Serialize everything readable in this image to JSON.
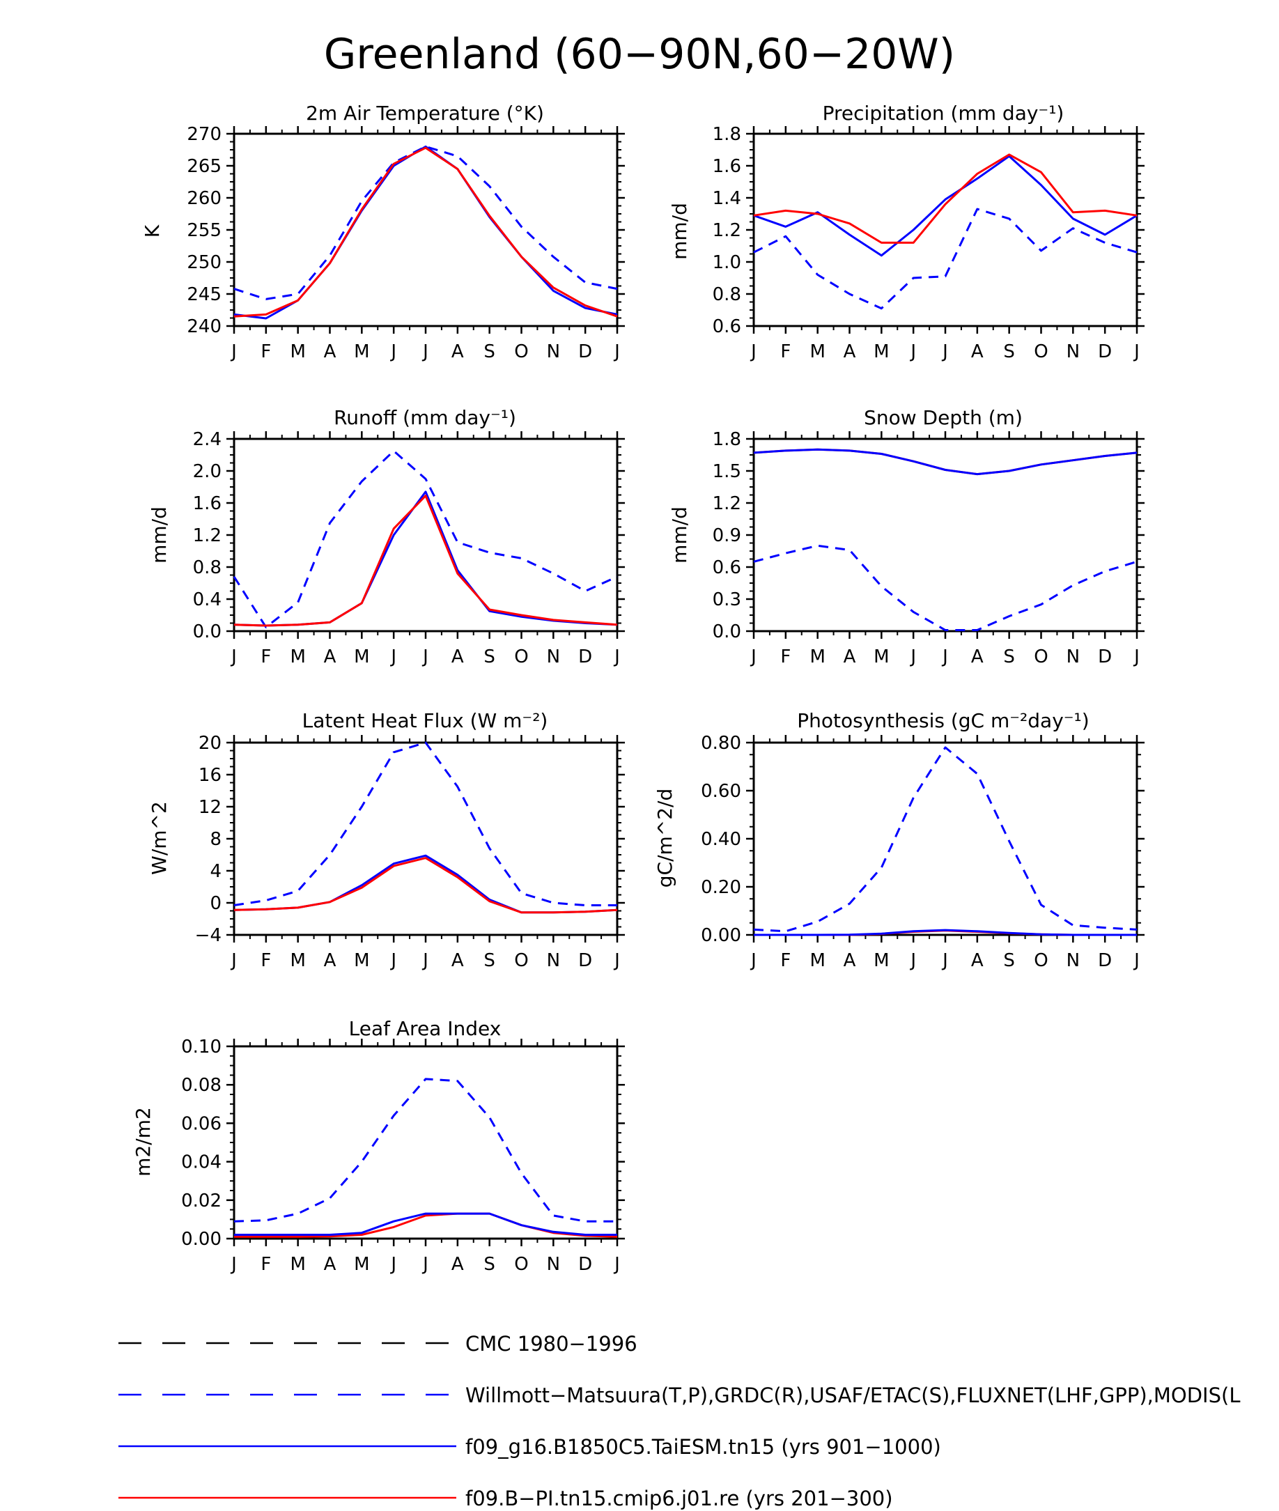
{
  "figure": {
    "title": "Greenland (60−90N,60−20W)"
  },
  "colors": {
    "obs_cmc": "#000000",
    "obs": "#0000ff",
    "taiesm": "#0000ff",
    "cmip6": "#ff0000"
  },
  "legend": [
    {
      "label": "CMC 1980−1996",
      "color": "#000000",
      "dash": true
    },
    {
      "label": "Willmott−Matsuura(T,P),GRDC(R),USAF/ETAC(S),FLUXNET(LHF,GPP),MODIS(L",
      "color": "#0000ff",
      "dash": true
    },
    {
      "label": "f09_g16.B1850C5.TaiESM.tn15 (yrs 901−1000)",
      "color": "#0000ff",
      "dash": false
    },
    {
      "label": "f09.B−PI.tn15.cmip6.j01.re (yrs 201−300)",
      "color": "#ff0000",
      "dash": false
    }
  ],
  "chart_data": [
    {
      "type": "line",
      "title": "2m Air Temperature (°K)",
      "ylabel": "K",
      "ylim": [
        240,
        270
      ],
      "yticks": [
        "270",
        "265",
        "260",
        "255",
        "250",
        "245",
        "240"
      ],
      "x": [
        "J",
        "F",
        "M",
        "A",
        "M",
        "J",
        "J",
        "A",
        "S",
        "O",
        "N",
        "D",
        "J"
      ],
      "series": [
        {
          "style": "obs",
          "values": [
            245.8,
            244.2,
            245.0,
            251.0,
            259.5,
            265.5,
            268.0,
            266.5,
            261.8,
            255.5,
            250.8,
            246.8,
            245.8
          ]
        },
        {
          "style": "taiesm",
          "values": [
            241.8,
            241.2,
            244.0,
            249.8,
            258.0,
            265.0,
            268.0,
            264.5,
            257.0,
            250.8,
            245.5,
            242.8,
            241.8
          ]
        },
        {
          "style": "cmip6",
          "values": [
            241.5,
            241.8,
            244.0,
            249.8,
            258.2,
            265.3,
            267.8,
            264.5,
            257.2,
            250.8,
            246.0,
            243.2,
            241.5
          ]
        }
      ]
    },
    {
      "type": "line",
      "title": "Precipitation (mm day⁻¹)",
      "ylabel": "mm/d",
      "ylim": [
        0.6,
        1.8
      ],
      "yticks": [
        "1.8",
        "1.6",
        "1.4",
        "1.2",
        "1.0",
        "0.8",
        "0.6"
      ],
      "x": [
        "J",
        "F",
        "M",
        "A",
        "M",
        "J",
        "J",
        "A",
        "S",
        "O",
        "N",
        "D",
        "J"
      ],
      "series": [
        {
          "style": "obs",
          "values": [
            1.06,
            1.16,
            0.92,
            0.8,
            0.71,
            0.9,
            0.91,
            1.33,
            1.27,
            1.07,
            1.21,
            1.12,
            1.06
          ]
        },
        {
          "style": "taiesm",
          "values": [
            1.29,
            1.22,
            1.31,
            1.17,
            1.04,
            1.2,
            1.39,
            1.52,
            1.66,
            1.48,
            1.27,
            1.17,
            1.29
          ]
        },
        {
          "style": "cmip6",
          "values": [
            1.29,
            1.32,
            1.3,
            1.24,
            1.12,
            1.12,
            1.36,
            1.55,
            1.67,
            1.56,
            1.31,
            1.32,
            1.29
          ]
        }
      ]
    },
    {
      "type": "line",
      "title": "Runoff (mm day⁻¹)",
      "ylabel": "mm/d",
      "ylim": [
        0.0,
        2.4
      ],
      "yticks": [
        "2.4",
        "2.0",
        "1.6",
        "1.2",
        "0.8",
        "0.4",
        "0.0"
      ],
      "x": [
        "J",
        "F",
        "M",
        "A",
        "M",
        "J",
        "J",
        "A",
        "S",
        "O",
        "N",
        "D",
        "J"
      ],
      "series": [
        {
          "style": "obs",
          "values": [
            0.68,
            0.05,
            0.36,
            1.35,
            1.87,
            2.25,
            1.9,
            1.11,
            0.98,
            0.91,
            0.72,
            0.5,
            0.68
          ]
        },
        {
          "style": "taiesm",
          "values": [
            0.08,
            0.07,
            0.08,
            0.11,
            0.35,
            1.2,
            1.74,
            0.76,
            0.25,
            0.18,
            0.13,
            0.1,
            0.08
          ]
        },
        {
          "style": "cmip6",
          "values": [
            0.08,
            0.07,
            0.08,
            0.11,
            0.35,
            1.28,
            1.69,
            0.72,
            0.27,
            0.2,
            0.14,
            0.11,
            0.08
          ]
        }
      ]
    },
    {
      "type": "line",
      "title": "Snow Depth (m)",
      "ylabel": "mm/d",
      "ylim": [
        0.0,
        1.8
      ],
      "yticks": [
        "1.8",
        "1.5",
        "1.2",
        "0.9",
        "0.6",
        "0.3",
        "0.0"
      ],
      "x": [
        "J",
        "F",
        "M",
        "A",
        "M",
        "J",
        "J",
        "A",
        "S",
        "O",
        "N",
        "D",
        "J"
      ],
      "series": [
        {
          "style": "obs_cmc",
          "values": [
            0,
            0,
            0,
            0,
            0,
            0,
            0,
            0,
            0,
            0,
            0,
            0,
            0
          ]
        },
        {
          "style": "obs",
          "values": [
            0.65,
            0.73,
            0.8,
            0.76,
            0.42,
            0.18,
            0.01,
            0.01,
            0.14,
            0.25,
            0.43,
            0.56,
            0.65
          ]
        },
        {
          "style": "cmip6",
          "values": [
            1.67,
            1.69,
            1.7,
            1.69,
            1.66,
            1.59,
            1.51,
            1.47,
            1.5,
            1.56,
            1.6,
            1.64,
            1.67
          ]
        },
        {
          "style": "taiesm",
          "values": [
            1.67,
            1.69,
            1.7,
            1.69,
            1.66,
            1.59,
            1.51,
            1.47,
            1.5,
            1.56,
            1.6,
            1.64,
            1.67
          ]
        }
      ]
    },
    {
      "type": "line",
      "title": "Latent Heat Flux (W m⁻²)",
      "ylabel": "W/m^2",
      "ylim": [
        -4,
        20
      ],
      "yticks": [
        "20",
        "16",
        "12",
        "8",
        "4",
        "0",
        "−4"
      ],
      "x": [
        "J",
        "F",
        "M",
        "A",
        "M",
        "J",
        "J",
        "A",
        "S",
        "O",
        "N",
        "D",
        "J"
      ],
      "series": [
        {
          "style": "obs",
          "values": [
            -0.3,
            0.3,
            1.5,
            6.0,
            12.0,
            18.8,
            20.0,
            14.5,
            6.8,
            1.2,
            0.0,
            -0.3,
            -0.3
          ]
        },
        {
          "style": "taiesm",
          "values": [
            -0.9,
            -0.8,
            -0.6,
            0.1,
            2.2,
            4.9,
            5.9,
            3.5,
            0.4,
            -1.2,
            -1.2,
            -1.1,
            -0.9
          ]
        },
        {
          "style": "cmip6",
          "values": [
            -0.9,
            -0.8,
            -0.6,
            0.1,
            1.9,
            4.6,
            5.6,
            3.2,
            0.2,
            -1.2,
            -1.2,
            -1.1,
            -0.9
          ]
        }
      ]
    },
    {
      "type": "line",
      "title": "Photosynthesis (gC m⁻²day⁻¹)",
      "ylabel": "gC/m^2/d",
      "ylim": [
        0.0,
        0.8
      ],
      "yticks": [
        "0.80",
        "0.60",
        "0.40",
        "0.20",
        "0.00"
      ],
      "x": [
        "J",
        "F",
        "M",
        "A",
        "M",
        "J",
        "J",
        "A",
        "S",
        "O",
        "N",
        "D",
        "J"
      ],
      "series": [
        {
          "style": "obs",
          "values": [
            0.022,
            0.015,
            0.055,
            0.13,
            0.28,
            0.57,
            0.78,
            0.67,
            0.39,
            0.125,
            0.04,
            0.03,
            0.022
          ]
        },
        {
          "style": "cmip6",
          "values": [
            0.0,
            0.0,
            0.0,
            0.0,
            0.004,
            0.013,
            0.018,
            0.013,
            0.007,
            0.002,
            0.0,
            0.0,
            0.0
          ]
        },
        {
          "style": "taiesm",
          "values": [
            0.0,
            0.0,
            0.0,
            0.001,
            0.005,
            0.015,
            0.02,
            0.015,
            0.008,
            0.002,
            0.0,
            0.0,
            0.0
          ]
        }
      ]
    },
    {
      "type": "line",
      "title": "Leaf Area Index",
      "ylabel": "m2/m2",
      "ylim": [
        0.0,
        0.1
      ],
      "yticks": [
        "0.10",
        "0.08",
        "0.06",
        "0.04",
        "0.02",
        "0.00"
      ],
      "x": [
        "J",
        "F",
        "M",
        "A",
        "M",
        "J",
        "J",
        "A",
        "S",
        "O",
        "N",
        "D",
        "J"
      ],
      "series": [
        {
          "style": "obs",
          "values": [
            0.009,
            0.0095,
            0.013,
            0.021,
            0.04,
            0.064,
            0.083,
            0.082,
            0.063,
            0.034,
            0.012,
            0.009,
            0.009
          ]
        },
        {
          "style": "cmip6",
          "values": [
            0.001,
            0.001,
            0.001,
            0.0012,
            0.002,
            0.006,
            0.012,
            0.013,
            0.013,
            0.007,
            0.003,
            0.0015,
            0.001
          ]
        },
        {
          "style": "taiesm",
          "values": [
            0.002,
            0.002,
            0.002,
            0.002,
            0.003,
            0.009,
            0.013,
            0.013,
            0.013,
            0.007,
            0.0035,
            0.002,
            0.002
          ]
        }
      ]
    }
  ]
}
